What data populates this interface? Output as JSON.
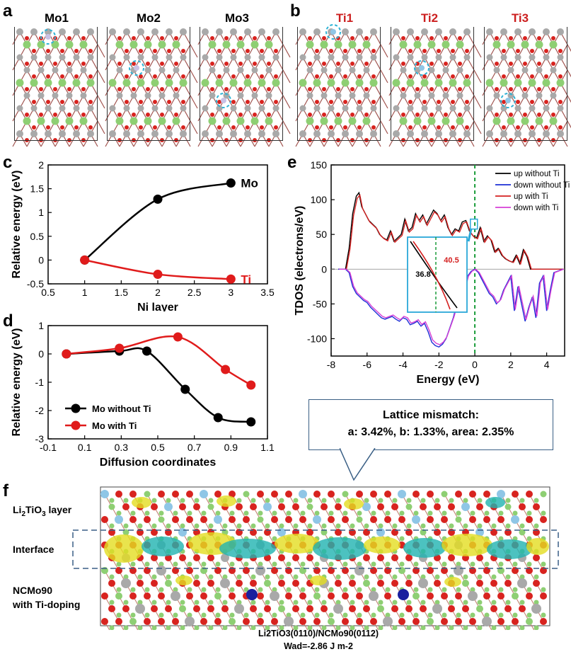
{
  "panel_letters": {
    "a": "a",
    "b": "b",
    "c": "c",
    "d": "d",
    "e": "e",
    "f": "f"
  },
  "panel_a": {
    "labels": [
      "Mo1",
      "Mo2",
      "Mo3"
    ],
    "label_color": "#000000"
  },
  "panel_b": {
    "labels": [
      "Ti1",
      "Ti2",
      "Ti3"
    ],
    "label_color": "#cc1f1f"
  },
  "colors": {
    "oxygen": "#d8231f",
    "lithium": "#8ecf73",
    "nickel": "#a9a9a9",
    "titanium": "#8fc6e6",
    "molybdenum": "#1a1f9e",
    "yellow": "#e3dd20",
    "cyan": "#1fb3b0"
  },
  "chart_data": [
    {
      "panel": "c",
      "type": "line",
      "xlabel": "Ni layer",
      "ylabel": "Relative energy (eV)",
      "xlim": [
        0.5,
        3.5
      ],
      "ylim": [
        -0.5,
        2
      ],
      "xticks": [
        "0.5",
        "1",
        "1.5",
        "2",
        "2.5",
        "3",
        "3.5"
      ],
      "yticks": [
        "-0.5",
        "0",
        "0.5",
        "1",
        "1.5",
        "2"
      ],
      "series": [
        {
          "name": "Mo",
          "color": "#000000",
          "x": [
            1,
            2,
            3
          ],
          "y": [
            0,
            1.28,
            1.62
          ]
        },
        {
          "name": "Ti",
          "color": "#e01b1b",
          "x": [
            1,
            2,
            3
          ],
          "y": [
            0,
            -0.3,
            -0.4
          ]
        }
      ]
    },
    {
      "panel": "d",
      "type": "line",
      "xlabel": "Diffusion coordinates",
      "ylabel": "Relative energy (eV)",
      "xlim": [
        -0.1,
        1.1
      ],
      "ylim": [
        -3,
        1
      ],
      "xticks": [
        "-0.1",
        "0.1",
        "0.3",
        "0.5",
        "0.7",
        "0.9",
        "1.1"
      ],
      "yticks": [
        "-3",
        "-2",
        "-1",
        "0",
        "1"
      ],
      "series": [
        {
          "name": "Mo without Ti",
          "color": "#000000",
          "x": [
            0,
            0.29,
            0.44,
            0.65,
            0.83,
            1.01
          ],
          "y": [
            0,
            0.1,
            0.1,
            -1.25,
            -2.25,
            -2.4
          ]
        },
        {
          "name": "Mo with Ti",
          "color": "#e01b1b",
          "x": [
            0,
            0.29,
            0.61,
            0.87,
            1.01
          ],
          "y": [
            0,
            0.2,
            0.6,
            -0.55,
            -1.1
          ]
        }
      ]
    },
    {
      "panel": "e",
      "type": "line",
      "xlabel": "Energy (eV)",
      "ylabel": "TDOS (electrons/eV)",
      "xlim": [
        -8,
        5
      ],
      "ylim": [
        -125,
        150
      ],
      "xticks": [
        "-8",
        "-6",
        "-4",
        "-2",
        "0",
        "2",
        "4"
      ],
      "yticks": [
        "-100",
        "-50",
        "0",
        "50",
        "100",
        "150"
      ],
      "legend": [
        "up without Ti",
        "down without Ti",
        "up with Ti",
        "down with Ti"
      ],
      "legend_colors": [
        "#000000",
        "#1c2fd6",
        "#d42020",
        "#d63fd6"
      ],
      "up_series": {
        "x": [
          -7.6,
          -7.2,
          -7.0,
          -6.8,
          -6.6,
          -6.45,
          -6.3,
          -6.1,
          -5.9,
          -5.7,
          -5.5,
          -5.3,
          -5.1,
          -4.9,
          -4.7,
          -4.5,
          -4.3,
          -4.1,
          -3.9,
          -3.7,
          -3.5,
          -3.3,
          -3.1,
          -2.9,
          -2.7,
          -2.5,
          -2.3,
          -2.1,
          -1.9,
          -1.7,
          -1.5,
          -1.3,
          -1.1,
          -0.9,
          -0.7,
          -0.5,
          -0.3,
          -0.1,
          0.1,
          0.3,
          0.5,
          0.7,
          0.9,
          1.1,
          1.3,
          1.5,
          1.7,
          1.9,
          2.1,
          2.3,
          2.5,
          2.7,
          2.9,
          3.1,
          3.3,
          4.9
        ],
        "y": [
          0,
          0,
          30,
          80,
          105,
          110,
          90,
          80,
          70,
          65,
          60,
          50,
          45,
          42,
          55,
          40,
          45,
          50,
          72,
          55,
          60,
          80,
          70,
          78,
          65,
          75,
          85,
          80,
          70,
          78,
          60,
          50,
          58,
          55,
          68,
          70,
          55,
          48,
          45,
          60,
          40,
          48,
          42,
          25,
          30,
          20,
          15,
          12,
          10,
          20,
          8,
          28,
          18,
          0,
          0,
          0
        ]
      },
      "down_series": {
        "x": [
          -7.6,
          -7.2,
          -7.0,
          -6.8,
          -6.6,
          -6.4,
          -6.2,
          -6.0,
          -5.8,
          -5.6,
          -5.4,
          -5.2,
          -5.0,
          -4.8,
          -4.6,
          -4.4,
          -4.2,
          -4.0,
          -3.8,
          -3.6,
          -3.4,
          -3.2,
          -3.0,
          -2.8,
          -2.6,
          -2.4,
          -2.2,
          -2.0,
          -1.8,
          -1.6,
          -1.4,
          -1.2,
          -1.0,
          -0.8,
          -0.6,
          -0.4,
          -0.2,
          0.0,
          0.2,
          0.4,
          0.6,
          0.8,
          1.0,
          1.2,
          1.4,
          1.6,
          1.8,
          2.0,
          2.2,
          2.4,
          2.6,
          2.8,
          3.0,
          3.2,
          3.4,
          3.6,
          3.8,
          4.0,
          4.2,
          4.4,
          4.9
        ],
        "y": [
          0,
          0,
          -5,
          -25,
          -35,
          -40,
          -45,
          -48,
          -55,
          -60,
          -65,
          -70,
          -72,
          -70,
          -68,
          -72,
          -75,
          -70,
          -72,
          -80,
          -78,
          -75,
          -82,
          -78,
          -90,
          -105,
          -110,
          -112,
          -108,
          -100,
          -85,
          -70,
          -50,
          -40,
          -30,
          -10,
          -3,
          0,
          -5,
          -15,
          -25,
          -35,
          -40,
          -50,
          -45,
          -30,
          -20,
          -10,
          -60,
          -25,
          -50,
          -75,
          -55,
          -40,
          -70,
          -20,
          -10,
          -60,
          -30,
          -5,
          0
        ]
      },
      "inset": {
        "left_value": "36.8",
        "right_value": "40.5"
      }
    }
  ],
  "panel_f": {
    "layer_label_prefix": "Li",
    "layer_label_sub1": "2",
    "layer_label_mid": "TiO",
    "layer_label_sub2": "3",
    "layer_label_suffix": " layer",
    "interface_label": "Interface",
    "bottom_label_line1": "NCMo90",
    "bottom_label_line2": "with Ti-doping",
    "caption_line1": "Li2TiO3(0110)/NCMo90(0112)",
    "caption_line2": "Wad=-2.86 J m-2"
  },
  "callout": {
    "line1": "Lattice mismatch:",
    "line2": "a: 3.42%, b: 1.33%, area: 2.35%"
  }
}
